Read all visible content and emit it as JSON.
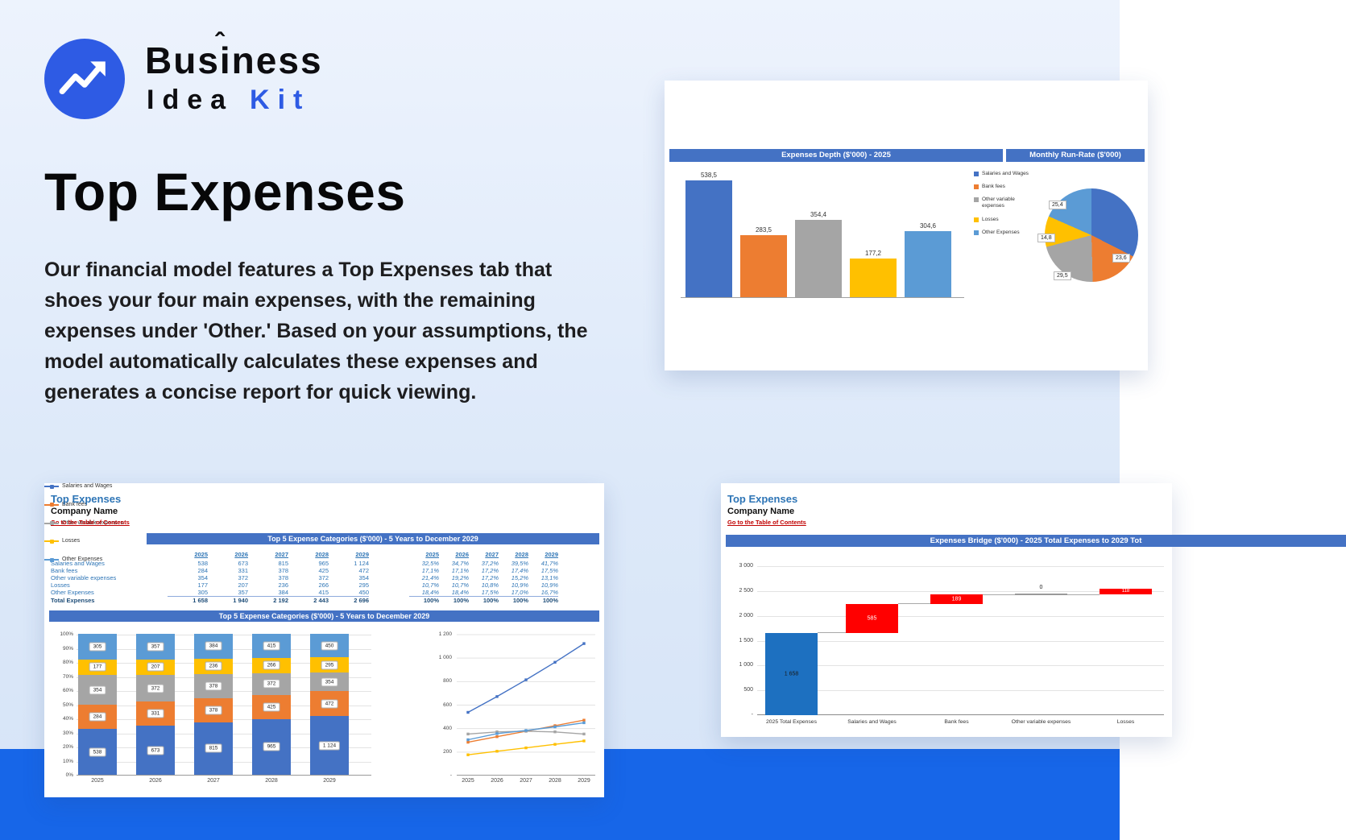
{
  "logo": {
    "word1": "Business",
    "caret": "ˆ",
    "word2": "Idea",
    "word3": "Kit"
  },
  "hero": {
    "title": "Top Expenses",
    "description": "Our financial model features a Top Expenses tab that shoes your four main expenses, with the remaining expenses under 'Other.' Based on your assumptions, the model automatically calculates these expenses and generates a concise report for quick viewing."
  },
  "report": {
    "title": "Top Expenses",
    "company": "Company Name",
    "toc": "Go to the Table of Contents",
    "table_title": "Top 5 Expense Categories ($'000) - 5 Years to December 2029",
    "table": {
      "years": [
        "2025",
        "2026",
        "2027",
        "2028",
        "2029"
      ],
      "rows": [
        {
          "label": "Salaries and Wages",
          "values": [
            "538",
            "673",
            "815",
            "965",
            "1 124"
          ],
          "pcts": [
            "32,5%",
            "34,7%",
            "37,2%",
            "39,5%",
            "41,7%"
          ]
        },
        {
          "label": "Bank fees",
          "values": [
            "284",
            "331",
            "378",
            "425",
            "472"
          ],
          "pcts": [
            "17,1%",
            "17,1%",
            "17,2%",
            "17,4%",
            "17,5%"
          ]
        },
        {
          "label": "Other variable expenses",
          "values": [
            "354",
            "372",
            "378",
            "372",
            "354"
          ],
          "pcts": [
            "21,4%",
            "19,2%",
            "17,2%",
            "15,2%",
            "13,1%"
          ]
        },
        {
          "label": "Losses",
          "values": [
            "177",
            "207",
            "236",
            "266",
            "295"
          ],
          "pcts": [
            "10,7%",
            "10,7%",
            "10,8%",
            "10,9%",
            "10,9%"
          ]
        },
        {
          "label": "Other Expenses",
          "values": [
            "305",
            "357",
            "384",
            "415",
            "450"
          ],
          "pcts": [
            "18,4%",
            "18,4%",
            "17,5%",
            "17,0%",
            "16,7%"
          ]
        }
      ],
      "total": {
        "label": "Total Expenses",
        "values": [
          "1 658",
          "1 940",
          "2 192",
          "2 443",
          "2 696"
        ],
        "pcts": [
          "100%",
          "100%",
          "100%",
          "100%",
          "100%"
        ]
      }
    }
  },
  "bridge": {
    "title": "Top Expenses",
    "company": "Company Name",
    "toc": "Go to the Table of Contents"
  },
  "chart_data": [
    {
      "id": "expenses-depth-bar",
      "type": "bar",
      "title": "Expenses Depth ($'000) - 2025",
      "categories": [
        "Salaries and Wages",
        "Bank fees",
        "Other variable expenses",
        "Losses",
        "Other Expenses"
      ],
      "values": [
        538.5,
        283.5,
        354.4,
        177.2,
        304.6
      ],
      "value_labels": [
        "538,5",
        "283,5",
        "354,4",
        "177,2",
        "304,6"
      ],
      "colors": [
        "#4472C4",
        "#ED7D31",
        "#A5A5A5",
        "#FFC000",
        "#5B9BD5"
      ],
      "ylim": [
        0,
        600
      ],
      "legend_position": "right"
    },
    {
      "id": "monthly-run-rate-pie",
      "type": "pie",
      "title": "Monthly Run-Rate ($'000)",
      "categories": [
        "Salaries and Wages",
        "Bank fees",
        "Other variable expenses",
        "Losses",
        "Other Expenses"
      ],
      "values": [
        44.9,
        23.6,
        29.5,
        14.8,
        25.4
      ],
      "visible_labels": [
        "25,4",
        "14,8",
        "29,5",
        "23,6"
      ],
      "colors": [
        "#4472C4",
        "#ED7D31",
        "#A5A5A5",
        "#FFC000",
        "#5B9BD5"
      ]
    },
    {
      "id": "top5-stacked-100pct",
      "type": "bar",
      "stacked": true,
      "title": "Top 5 Expense Categories ($'000) - 5 Years to December 2029",
      "categories": [
        "2025",
        "2026",
        "2027",
        "2028",
        "2029"
      ],
      "series": [
        {
          "name": "Salaries and Wages",
          "color": "#4472C4",
          "values": [
            538,
            673,
            815,
            965,
            1124
          ],
          "labels": [
            "538",
            "673",
            "815",
            "965",
            "1 124"
          ]
        },
        {
          "name": "Bank fees",
          "color": "#ED7D31",
          "values": [
            284,
            331,
            378,
            425,
            472
          ],
          "labels": [
            "284",
            "331",
            "378",
            "425",
            "472"
          ]
        },
        {
          "name": "Other variable expenses",
          "color": "#A5A5A5",
          "values": [
            354,
            372,
            378,
            372,
            354
          ],
          "labels": [
            "354",
            "372",
            "378",
            "372",
            "354"
          ]
        },
        {
          "name": "Losses",
          "color": "#FFC000",
          "values": [
            177,
            207,
            236,
            266,
            295
          ],
          "labels": [
            "177",
            "207",
            "236",
            "266",
            "295"
          ]
        },
        {
          "name": "Other Expenses",
          "color": "#5B9BD5",
          "values": [
            305,
            357,
            384,
            415,
            450
          ],
          "labels": [
            "305",
            "357",
            "384",
            "415",
            "450"
          ]
        }
      ],
      "totals": [
        1658,
        1940,
        2192,
        2443,
        2696
      ],
      "y_ticks": [
        "100%",
        "90%",
        "80%",
        "70%",
        "60%",
        "50%",
        "40%",
        "30%",
        "20%",
        "10%",
        "0%"
      ]
    },
    {
      "id": "top5-lines",
      "type": "line",
      "categories": [
        "2025",
        "2026",
        "2027",
        "2028",
        "2029"
      ],
      "ylim": [
        0,
        1200
      ],
      "y_ticks": [
        "1 200",
        "1 000",
        "800",
        "600",
        "400",
        "200",
        "-"
      ],
      "series": [
        {
          "name": "Salaries and Wages",
          "color": "#4472C4",
          "values": [
            538,
            673,
            815,
            965,
            1124
          ]
        },
        {
          "name": "Bank fees",
          "color": "#ED7D31",
          "values": [
            284,
            331,
            378,
            425,
            472
          ]
        },
        {
          "name": "Other variable expenses",
          "color": "#A5A5A5",
          "values": [
            354,
            372,
            378,
            372,
            354
          ]
        },
        {
          "name": "Losses",
          "color": "#FFC000",
          "values": [
            177,
            207,
            236,
            266,
            295
          ]
        },
        {
          "name": "Other Expenses",
          "color": "#5B9BD5",
          "values": [
            305,
            357,
            384,
            415,
            450
          ]
        }
      ]
    },
    {
      "id": "expenses-bridge-waterfall",
      "type": "waterfall",
      "title": "Expenses Bridge ($'000) - 2025 Total Expenses to 2029 Tot",
      "categories": [
        "2025 Total Expenses",
        "Salaries and Wages",
        "Bank fees",
        "Other variable expenses",
        "Losses"
      ],
      "start": {
        "label": "1 658",
        "value": 1658,
        "color": "#1D70C0"
      },
      "steps": [
        {
          "label": "585",
          "value": 585
        },
        {
          "label": "189",
          "value": 189
        },
        {
          "label": "0",
          "value": 0
        },
        {
          "label": "118",
          "value": 118
        }
      ],
      "step_color": "#FF0000",
      "ylim": [
        0,
        3000
      ],
      "y_ticks": [
        "3 000",
        "2 500",
        "2 000",
        "1 500",
        "1 000",
        "500",
        "-"
      ]
    }
  ]
}
